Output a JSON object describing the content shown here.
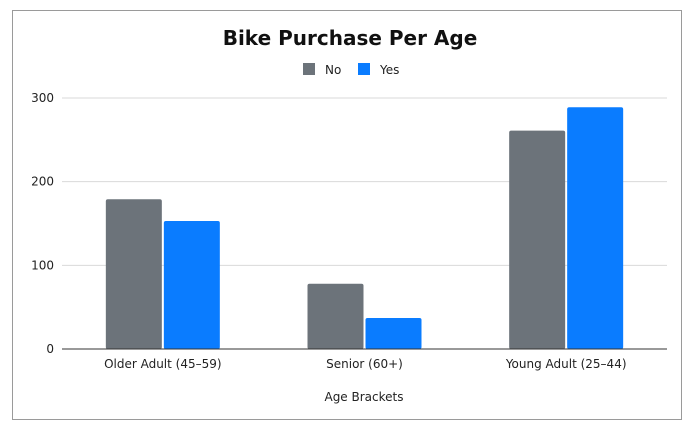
{
  "chart_data": {
    "type": "bar",
    "title": "Bike Purchase Per Age",
    "xlabel": "Age Brackets",
    "ylabel": "",
    "categories": [
      "Older Adult (45–59)",
      "Senior (60+)",
      "Young Adult (25–44)"
    ],
    "series": [
      {
        "name": "No",
        "color": "#6c737a",
        "values": [
          179,
          78,
          261
        ]
      },
      {
        "name": "Yes",
        "color": "#0a7cff",
        "values": [
          153,
          37,
          289
        ]
      }
    ],
    "ylim": [
      0,
      300
    ],
    "yticks": [
      0,
      100,
      200,
      300
    ],
    "grid": true,
    "legend_position": "top-center"
  }
}
